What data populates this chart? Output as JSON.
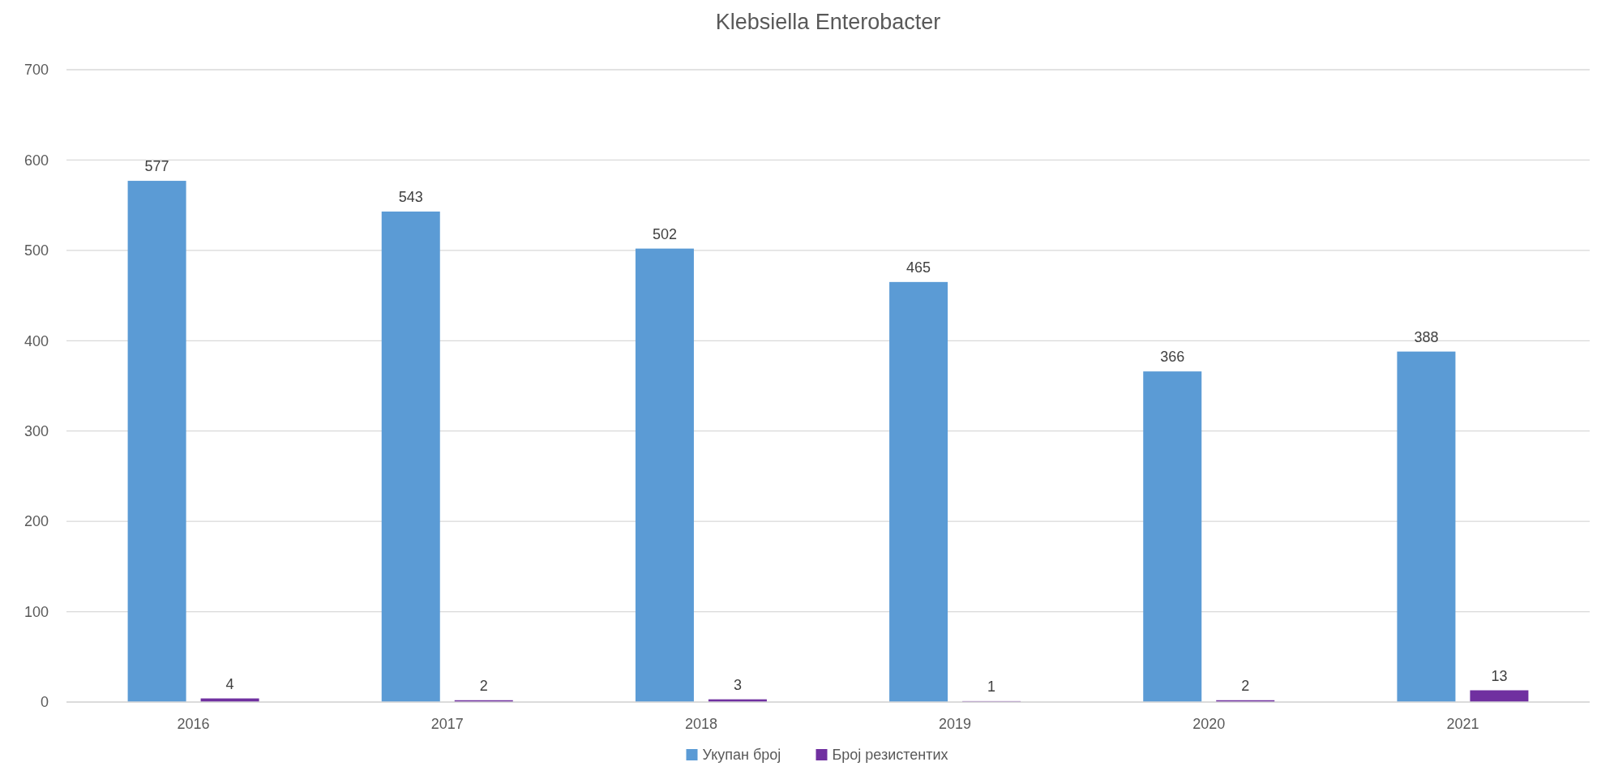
{
  "chart_data": {
    "type": "bar",
    "title": "Klebsiella Enterobacter",
    "categories": [
      "2016",
      "2017",
      "2018",
      "2019",
      "2020",
      "2021"
    ],
    "series": [
      {
        "name": "Укупан број",
        "color": "#5b9bd5",
        "values": [
          577,
          543,
          502,
          465,
          366,
          388
        ]
      },
      {
        "name": "Број резистентих",
        "color": "#7030a0",
        "values": [
          4,
          2,
          3,
          1,
          2,
          13
        ]
      }
    ],
    "ylim": [
      0,
      700
    ],
    "yticks": [
      0,
      100,
      200,
      300,
      400,
      500,
      600,
      700
    ],
    "grid": "y",
    "legend": "bottom",
    "data_labels": true
  }
}
